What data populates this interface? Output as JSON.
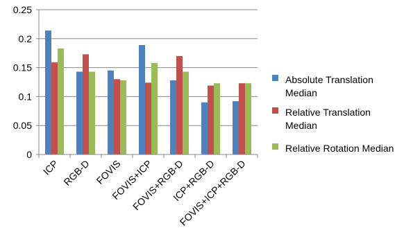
{
  "chart_data": {
    "type": "bar",
    "categories": [
      "ICP",
      "RGB-D",
      "FOVIS",
      "FOVIS+ICP",
      "FOVIS+RGB-D",
      "ICP+RGB-D",
      "FOVIS+ICP+RGB-D"
    ],
    "series": [
      {
        "name": "Absolute Translation Median",
        "legend_lines": [
          "Absolute Translation",
          "Median"
        ],
        "color": "#4F81BD",
        "values": [
          0.214,
          0.143,
          0.145,
          0.189,
          0.128,
          0.09,
          0.092
        ]
      },
      {
        "name": "Relative Translation Median",
        "legend_lines": [
          "Relative Translation",
          "Median"
        ],
        "color": "#C0504D",
        "values": [
          0.159,
          0.173,
          0.13,
          0.124,
          0.17,
          0.119,
          0.123
        ]
      },
      {
        "name": "Relative Rotation Median",
        "legend_lines": [
          "Relative Rotation Median"
        ],
        "color": "#9BBB59",
        "values": [
          0.183,
          0.143,
          0.128,
          0.158,
          0.143,
          0.123,
          0.123
        ]
      }
    ],
    "ylim": [
      0,
      0.25
    ],
    "yticks": [
      "0",
      "0.05",
      "0.1",
      "0.15",
      "0.2",
      "0.25"
    ],
    "grid": true,
    "legend_position": "right",
    "title": "",
    "xlabel": "",
    "ylabel": ""
  }
}
